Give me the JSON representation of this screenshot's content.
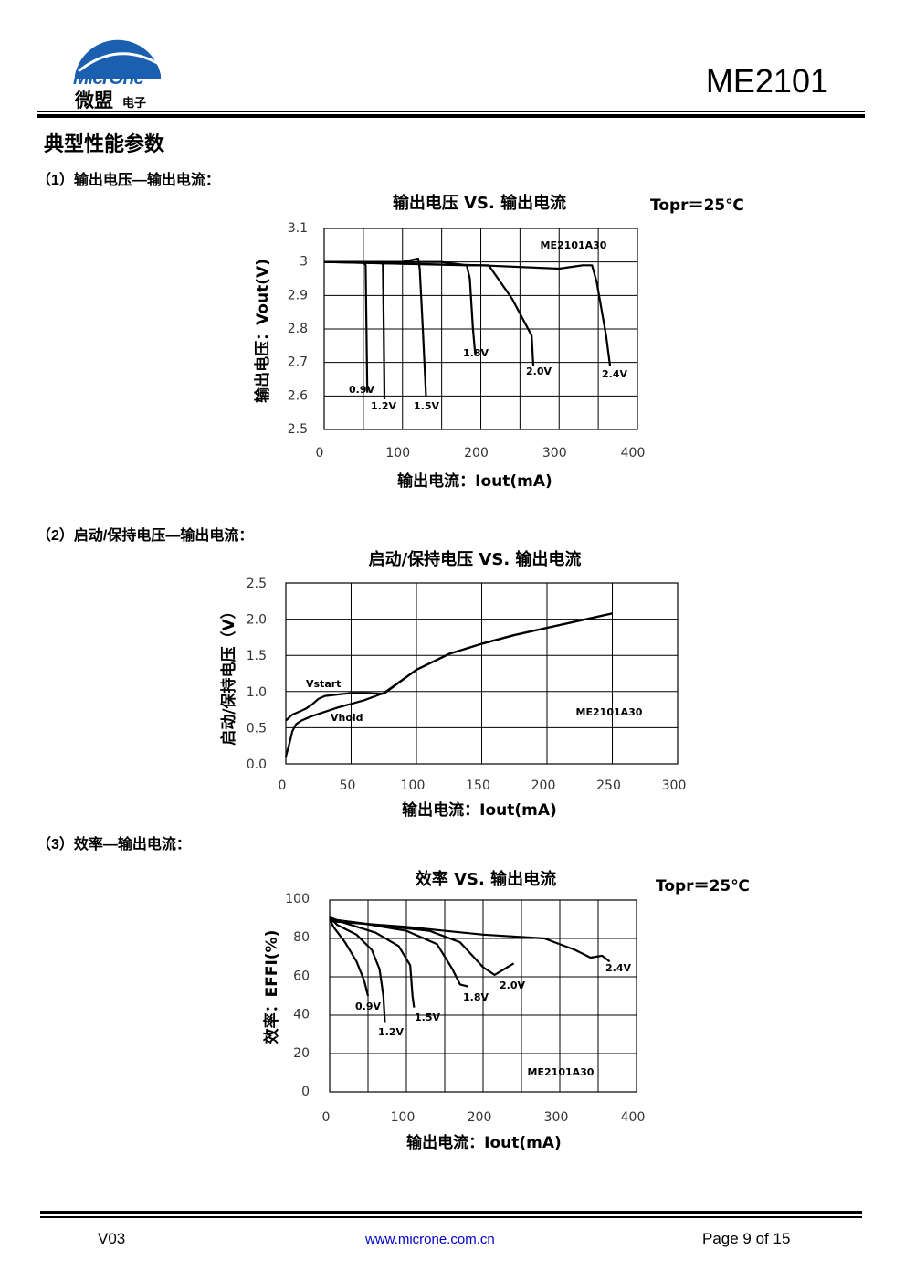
{
  "header": {
    "logo_text_en": "MicrOne",
    "logo_text_cn": "微盟",
    "logo_text_cn_small": "电子",
    "part_number": "ME2101"
  },
  "section": {
    "title": "典型性能参数",
    "sub1": "（1）输出电压—输出电流：",
    "sub2": "（2）启动/保持电压—输出电流：",
    "sub3": "（3）效率—输出电流："
  },
  "chart_data": [
    {
      "type": "line",
      "title": "输出电压 VS. 输出电流",
      "condition": "Topr＝25℃",
      "xlabel": "输出电流：Iout(mA)",
      "ylabel": "输出电压：Vout(V)",
      "xlim": [
        0,
        400
      ],
      "ylim": [
        2.5,
        3.1
      ],
      "x_ticks": [
        "0",
        "100",
        "200",
        "300",
        "400"
      ],
      "y_ticks": [
        "3.1",
        "3",
        "2.9",
        "2.8",
        "2.7",
        "2.6",
        "2.5"
      ],
      "model_label": "ME2101A30",
      "series": [
        {
          "name": "0.9V",
          "x": [
            0,
            40,
            50,
            53,
            54,
            55
          ],
          "y": [
            3.0,
            3.0,
            3.0,
            2.99,
            2.8,
            2.61
          ]
        },
        {
          "name": "1.2V",
          "x": [
            0,
            60,
            74,
            75,
            76,
            77
          ],
          "y": [
            3.0,
            3.0,
            3.0,
            2.99,
            2.8,
            2.59
          ]
        },
        {
          "name": "1.5V",
          "x": [
            0,
            100,
            120,
            122,
            126,
            130
          ],
          "y": [
            3.0,
            3.0,
            3.01,
            2.98,
            2.8,
            2.6
          ]
        },
        {
          "name": "1.8V",
          "x": [
            0,
            150,
            182,
            186,
            190,
            193
          ],
          "y": [
            3.0,
            3.0,
            2.99,
            2.95,
            2.8,
            2.72
          ]
        },
        {
          "name": "2.0V",
          "x": [
            0,
            180,
            210,
            240,
            265,
            267
          ],
          "y": [
            3.0,
            2.99,
            2.99,
            2.89,
            2.78,
            2.69
          ]
        },
        {
          "name": "2.4V",
          "x": [
            0,
            200,
            300,
            330,
            342,
            348,
            360,
            365
          ],
          "y": [
            3.0,
            2.99,
            2.98,
            2.99,
            2.99,
            2.94,
            2.78,
            2.69
          ]
        }
      ]
    },
    {
      "type": "line",
      "title": "启动/保持电压 VS. 输出电流",
      "condition": "Topr＝25℃",
      "xlabel": "输出电流：Iout(mA)",
      "ylabel": "启动/保持电压（V）",
      "xlim": [
        0,
        300
      ],
      "ylim": [
        0.0,
        2.5
      ],
      "x_ticks": [
        "0",
        "50",
        "100",
        "150",
        "200",
        "250",
        "300"
      ],
      "y_ticks": [
        "2.5",
        "2.0",
        "1.5",
        "1.0",
        "0.5",
        "0.0"
      ],
      "model_label": "ME2101A30",
      "series": [
        {
          "name": "Vstart",
          "x": [
            0,
            5,
            10,
            15,
            20,
            25,
            30,
            40,
            50,
            60,
            75,
            100,
            125,
            150,
            175,
            200,
            225,
            250
          ],
          "y": [
            0.6,
            0.68,
            0.72,
            0.76,
            0.82,
            0.9,
            0.94,
            0.96,
            0.98,
            0.98,
            0.97,
            1.3,
            1.52,
            1.66,
            1.78,
            1.88,
            1.98,
            2.08
          ]
        },
        {
          "name": "Vhold",
          "x": [
            0,
            3,
            5,
            8,
            12,
            20,
            40,
            60,
            75,
            100,
            125,
            150,
            175,
            200,
            225,
            250
          ],
          "y": [
            0.1,
            0.3,
            0.45,
            0.55,
            0.6,
            0.66,
            0.78,
            0.88,
            0.98,
            1.3,
            1.52,
            1.66,
            1.78,
            1.88,
            1.98,
            2.08
          ]
        }
      ]
    },
    {
      "type": "line",
      "title": "效率 VS. 输出电流",
      "condition": "Topr＝25℃",
      "xlabel": "输出电流：Iout(mA)",
      "ylabel": "效率：EFFI(%)",
      "xlim": [
        0,
        400
      ],
      "ylim": [
        0,
        100
      ],
      "x_ticks": [
        "0",
        "100",
        "200",
        "300",
        "400"
      ],
      "y_ticks": [
        "100",
        "80",
        "60",
        "40",
        "20",
        "0"
      ],
      "model_label": "ME2101A30",
      "series": [
        {
          "name": "0.9V",
          "x": [
            0,
            5,
            20,
            35,
            45,
            50
          ],
          "y": [
            90,
            86,
            78,
            68,
            58,
            50
          ]
        },
        {
          "name": "1.2V",
          "x": [
            0,
            10,
            35,
            55,
            65,
            70,
            72
          ],
          "y": [
            91,
            87,
            82,
            74,
            64,
            50,
            36
          ]
        },
        {
          "name": "1.5V",
          "x": [
            0,
            20,
            60,
            90,
            105,
            108,
            110
          ],
          "y": [
            91,
            88,
            83,
            76,
            66,
            50,
            44
          ]
        },
        {
          "name": "1.8V",
          "x": [
            0,
            40,
            100,
            140,
            160,
            170,
            180
          ],
          "y": [
            90,
            88,
            84,
            77,
            64,
            56,
            55
          ]
        },
        {
          "name": "2.0V",
          "x": [
            0,
            60,
            130,
            170,
            200,
            215,
            240
          ],
          "y": [
            90,
            87,
            84,
            78,
            65,
            61,
            67
          ]
        },
        {
          "name": "2.4V",
          "x": [
            0,
            100,
            200,
            280,
            320,
            340,
            355,
            365
          ],
          "y": [
            89,
            86,
            82,
            80,
            74,
            70,
            71,
            68
          ]
        }
      ]
    }
  ],
  "footer": {
    "version": "V03",
    "url": "www.microne.com.cn",
    "page": "Page 9 of 15"
  }
}
